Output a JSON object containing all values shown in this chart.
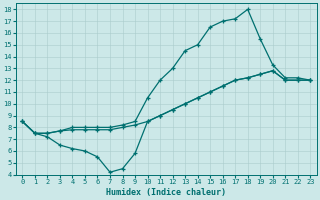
{
  "xlabel": "Humidex (Indice chaleur)",
  "ylabel": "",
  "bg_color": "#cce8e8",
  "grid_color": "#aacccc",
  "line_color": "#007070",
  "xlim": [
    -0.5,
    23.5
  ],
  "ylim": [
    4,
    18.5
  ],
  "yticks": [
    4,
    5,
    6,
    7,
    8,
    9,
    10,
    11,
    12,
    13,
    14,
    15,
    16,
    17,
    18
  ],
  "xticks": [
    0,
    1,
    2,
    3,
    4,
    5,
    6,
    7,
    8,
    9,
    10,
    11,
    12,
    13,
    14,
    15,
    16,
    17,
    18,
    19,
    20,
    21,
    22,
    23
  ],
  "line1_x": [
    0,
    1,
    2,
    3,
    4,
    5,
    6,
    7,
    8,
    9,
    10,
    11,
    12,
    13,
    14,
    15,
    16,
    17,
    18,
    19,
    20,
    21,
    22,
    23
  ],
  "line1_y": [
    8.5,
    7.5,
    7.5,
    7.7,
    8.0,
    8.0,
    8.0,
    8.0,
    8.2,
    8.5,
    10.5,
    12.0,
    13.0,
    14.5,
    15.0,
    16.5,
    17.0,
    17.2,
    18.0,
    15.5,
    13.3,
    12.2,
    12.2,
    12.0
  ],
  "line2_x": [
    0,
    1,
    2,
    3,
    4,
    5,
    6,
    7,
    8,
    9,
    10,
    11,
    12,
    13,
    14,
    15,
    16,
    17,
    18,
    19,
    20,
    21,
    22,
    23
  ],
  "line2_y": [
    8.5,
    7.5,
    7.5,
    7.7,
    7.8,
    7.8,
    7.8,
    7.8,
    8.0,
    8.2,
    8.5,
    9.0,
    9.5,
    10.0,
    10.5,
    11.0,
    11.5,
    12.0,
    12.2,
    12.5,
    12.8,
    12.0,
    12.0,
    12.0
  ],
  "line3_x": [
    0,
    1,
    2,
    3,
    4,
    5,
    6,
    7,
    8,
    9,
    10,
    11,
    12,
    13,
    14,
    15,
    16,
    17,
    18,
    19,
    20,
    21,
    22,
    23
  ],
  "line3_y": [
    8.5,
    7.5,
    7.2,
    6.5,
    6.2,
    6.0,
    5.5,
    4.2,
    4.5,
    5.8,
    8.5,
    9.0,
    9.5,
    10.0,
    10.5,
    11.0,
    11.5,
    12.0,
    12.2,
    12.5,
    12.8,
    12.0,
    12.0,
    12.0
  ]
}
